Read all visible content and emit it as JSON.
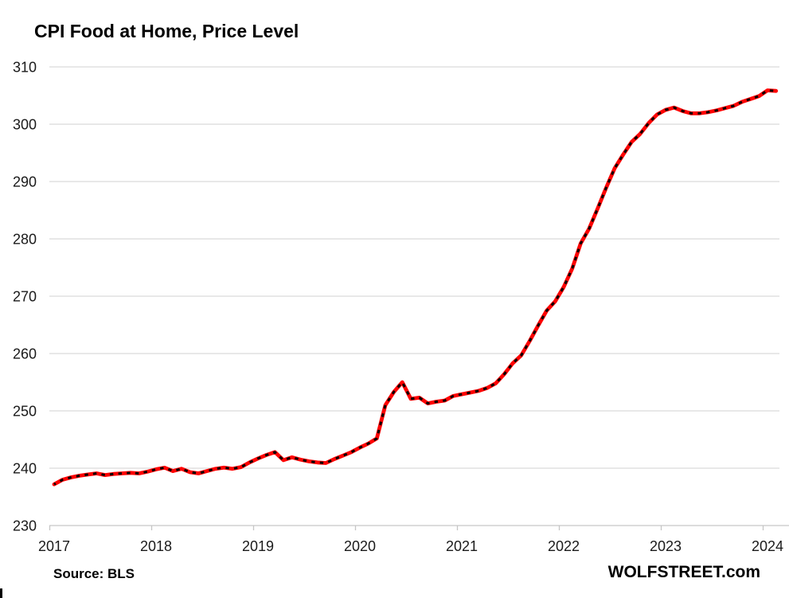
{
  "header": {
    "title": "CPI Food at Home, Price Level"
  },
  "footer": {
    "source": "Source: BLS",
    "branding": "WOLFSTREET.com"
  },
  "colors": {
    "line": "#ff0000",
    "marker": "#000000",
    "gridline": "#d9d9d9",
    "axis": "#c6c6c6",
    "tick_label": "#1a1a1a",
    "background": "#ffffff"
  },
  "chart_data": {
    "type": "line",
    "title": "CPI Food at Home, Price Level",
    "frequency": "monthly",
    "x_start": "2017-01",
    "x_end": "2024-02",
    "x_tick_labels": [
      "2017",
      "2018",
      "2019",
      "2020",
      "2021",
      "2022",
      "2023",
      "2024"
    ],
    "y_ticks": [
      230,
      240,
      250,
      260,
      270,
      280,
      290,
      300,
      310
    ],
    "ylim": [
      230,
      310
    ],
    "grid": true,
    "legend_position": "none",
    "series": [
      {
        "name": "CPI Food at Home, index level",
        "line_color": "#ff0000",
        "marker_color": "#000000",
        "marker_style": "black dashes along red line",
        "values": [
          237.2,
          238.0,
          238.4,
          238.7,
          238.9,
          239.1,
          238.8,
          239.0,
          239.1,
          239.2,
          239.1,
          239.4,
          239.8,
          240.1,
          239.5,
          239.9,
          239.3,
          239.1,
          239.5,
          239.9,
          240.1,
          239.9,
          240.2,
          241.0,
          241.7,
          242.3,
          242.8,
          241.4,
          241.9,
          241.5,
          241.2,
          241.0,
          240.9,
          241.6,
          242.2,
          242.8,
          243.6,
          244.3,
          245.2,
          251.0,
          253.3,
          255.0,
          252.1,
          252.3,
          251.3,
          251.6,
          251.8,
          252.6,
          252.9,
          253.2,
          253.5,
          254.0,
          254.8,
          256.4,
          258.3,
          259.7,
          262.2,
          264.9,
          267.5,
          269.1,
          271.6,
          274.8,
          279.2,
          281.8,
          285.3,
          288.9,
          292.3,
          294.7,
          296.9,
          298.3,
          300.2,
          301.7,
          302.5,
          302.9,
          302.3,
          301.9,
          301.9,
          302.1,
          302.4,
          302.8,
          303.2,
          303.9,
          304.4,
          304.9,
          305.9,
          305.8
        ]
      }
    ]
  }
}
